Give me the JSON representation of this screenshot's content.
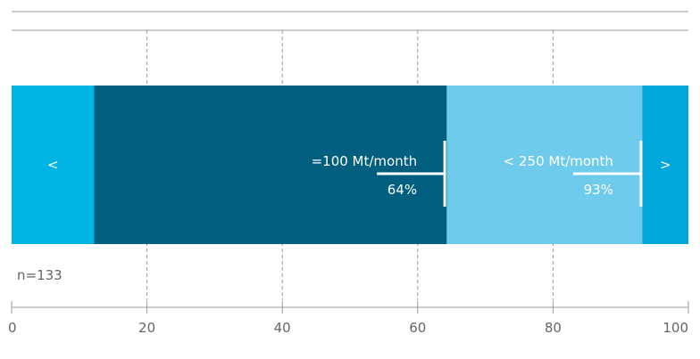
{
  "chart_data": {
    "type": "bar",
    "orientation": "horizontal",
    "stacked": true,
    "title": "",
    "xlabel": "",
    "ylabel": "",
    "xlim": [
      0,
      100
    ],
    "x_ticks": [
      0,
      20,
      40,
      60,
      80,
      100
    ],
    "x_tick_labels": [
      "0",
      "20",
      "40",
      "60",
      "80",
      "100"
    ],
    "grid": "vertical dashed",
    "segments": [
      {
        "label": "<",
        "start": 0,
        "end": 12.2,
        "color": "#00b5e2"
      },
      {
        "label": "",
        "start": 12.2,
        "end": 64.3,
        "color": "#005f7f"
      },
      {
        "label": "",
        "start": 64.3,
        "end": 93.2,
        "color": "#6fcbeb"
      },
      {
        "label": ">",
        "start": 93.2,
        "end": 100,
        "color": "#00a6dc"
      }
    ],
    "markers": [
      {
        "label": "=100 Mt/month",
        "value": 64,
        "value_label": "64%"
      },
      {
        "label": "< 250 Mt/month",
        "value": 93,
        "value_label": "93%"
      }
    ],
    "note": "n=133"
  }
}
